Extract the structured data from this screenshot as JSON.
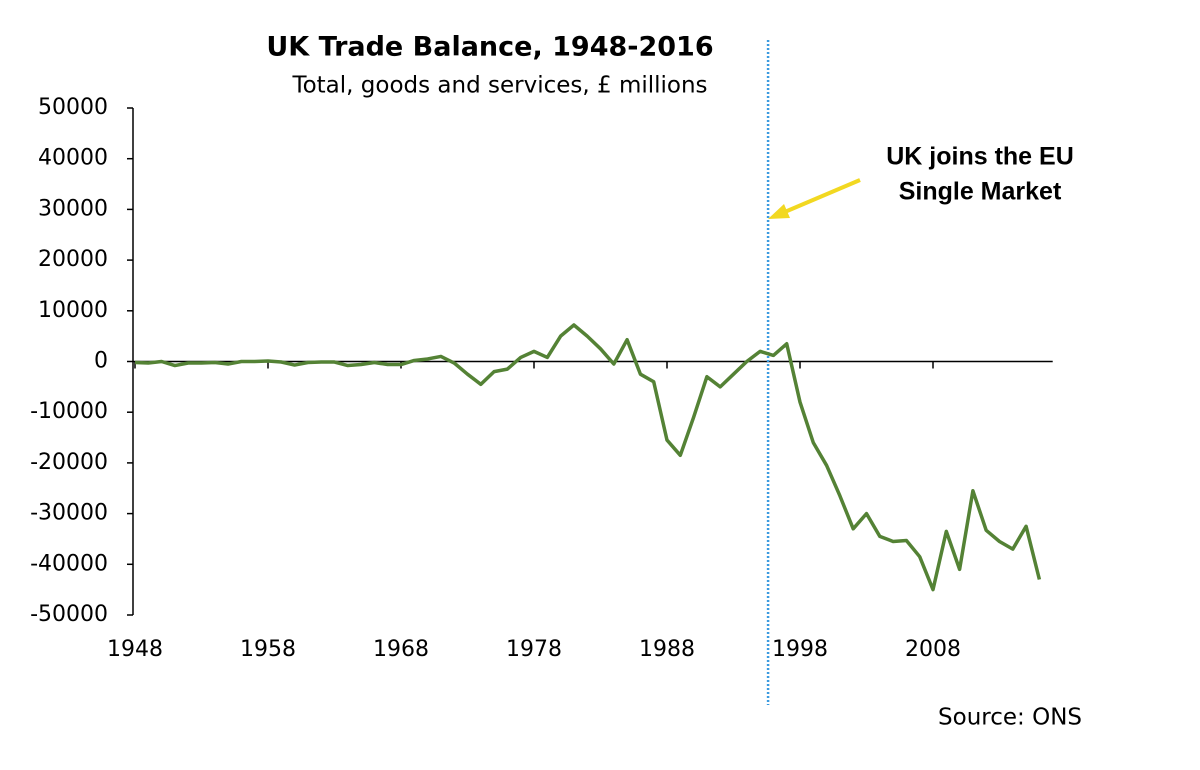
{
  "chart_data": {
    "type": "line",
    "title": "UK Trade Balance, 1948-2016",
    "subtitle": "Total, goods and services, £ millions",
    "annotation": {
      "lines": [
        "UK joins the EU",
        "Single Market"
      ],
      "x": 1995.6,
      "color": "#3b9be0"
    },
    "source": "Source: ONS",
    "x": [
      1948,
      1949,
      1950,
      1951,
      1952,
      1953,
      1954,
      1955,
      1956,
      1957,
      1958,
      1959,
      1960,
      1961,
      1962,
      1963,
      1964,
      1965,
      1966,
      1967,
      1968,
      1969,
      1970,
      1971,
      1972,
      1973,
      1974,
      1975,
      1976,
      1977,
      1978,
      1979,
      1980,
      1981,
      1982,
      1983,
      1984,
      1985,
      1986,
      1987,
      1988,
      1989,
      1990,
      1991,
      1992,
      1993,
      1994,
      1995,
      1996,
      1997,
      1998,
      1999,
      2000,
      2001,
      2002,
      2003,
      2004,
      2005,
      2006,
      2007,
      2008,
      2009,
      2010,
      2011,
      2012,
      2013,
      2014,
      2015,
      2016
    ],
    "series": [
      {
        "name": "Trade balance",
        "color": "#548235",
        "values": [
          -200,
          -300,
          0,
          -800,
          -300,
          -300,
          -200,
          -500,
          0,
          0,
          100,
          -100,
          -700,
          -200,
          -100,
          -100,
          -800,
          -600,
          -200,
          -600,
          -600,
          200,
          500,
          1000,
          -300,
          -2500,
          -4500,
          -2000,
          -1500,
          800,
          2000,
          800,
          5000,
          7200,
          5000,
          2500,
          -500,
          4300,
          -2500,
          -4000,
          -15500,
          -18500,
          -11000,
          -3000,
          -5000,
          -2500,
          0,
          2000,
          1200,
          3500,
          -8000,
          -16000,
          -20500,
          -26500,
          -33000,
          -30000,
          -34500,
          -35500,
          -35300,
          -38500,
          -45000,
          -33500,
          -41000,
          -25500,
          -33300,
          -35500,
          -37000,
          -32500,
          -43000
        ]
      }
    ],
    "xlim": [
      1948,
      2017
    ],
    "xticks": [
      1948,
      1958,
      1968,
      1978,
      1988,
      1998,
      2008
    ],
    "ylim": [
      -50000,
      50000
    ],
    "yticks": [
      -50000,
      -40000,
      -30000,
      -20000,
      -10000,
      0,
      10000,
      20000,
      30000,
      40000,
      50000
    ]
  }
}
